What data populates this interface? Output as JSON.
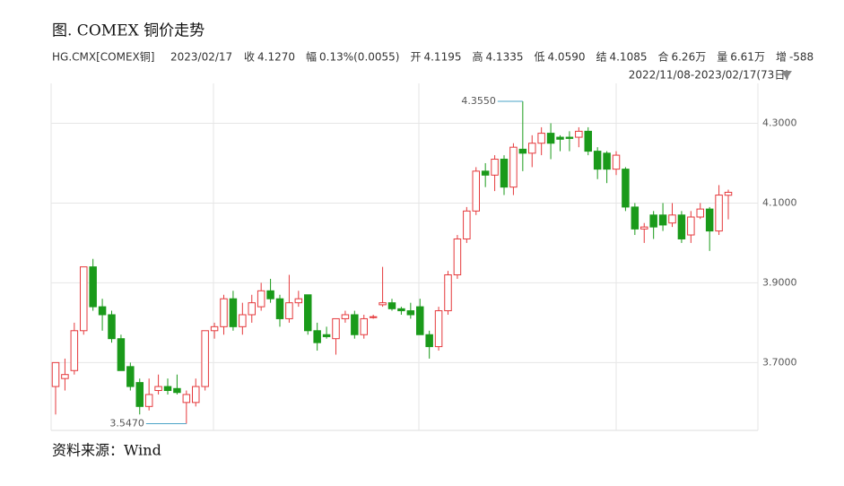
{
  "chart_data": {
    "type": "candlestick",
    "title": "图. COMEX 铜价走势",
    "symbol": "HG.CMX[COMEX铜]",
    "date": "2023/02/17",
    "info": [
      {
        "label": "收",
        "value": "4.1270",
        "color": "#1a9a1a"
      },
      {
        "label": "幅",
        "value": "0.13%(0.0055)",
        "color": "#e5393c"
      },
      {
        "label": "开",
        "value": "4.1195",
        "color": "#1a9a1a"
      },
      {
        "label": "高",
        "value": "4.1335",
        "color": "#1a9a1a"
      },
      {
        "label": "低",
        "value": "4.0590",
        "color": "#1a9a1a"
      },
      {
        "label": "结",
        "value": "4.1085",
        "color": "#e5393c"
      },
      {
        "label": "合",
        "value": "6.26万",
        "color": "#333333"
      },
      {
        "label": "量",
        "value": "6.61万",
        "color": "#333333"
      },
      {
        "label": "增",
        "value": "-588",
        "color": "#1a9a1a"
      }
    ],
    "range": "2022/11/08-2023/02/17(73日)",
    "source": "资料来源：Wind",
    "up_color": "#e5393c",
    "down_color": "#1a9a1a",
    "ylim": [
      3.53,
      4.4
    ],
    "yticks": [
      {
        "value": 3.7,
        "label": "3.7000"
      },
      {
        "value": 3.9,
        "label": "3.9000"
      },
      {
        "value": 4.1,
        "label": "4.1000"
      },
      {
        "value": 4.3,
        "label": "4.3000"
      }
    ],
    "grid": true,
    "extremes": [
      {
        "value": 4.355,
        "label": "4.3550",
        "index": 50,
        "color": "#e5393c"
      },
      {
        "value": 3.547,
        "label": "3.5470",
        "index": 14,
        "color": "#1a9a1a"
      }
    ],
    "open": [
      3.64,
      3.66,
      3.68,
      3.78,
      3.94,
      3.84,
      3.82,
      3.76,
      3.69,
      3.65,
      3.59,
      3.63,
      3.64,
      3.635,
      3.6,
      3.6,
      3.64,
      3.78,
      3.79,
      3.86,
      3.79,
      3.82,
      3.84,
      3.88,
      3.86,
      3.81,
      3.85,
      3.87,
      3.78,
      3.77,
      3.76,
      3.81,
      3.82,
      3.77,
      3.815,
      3.845,
      3.85,
      3.835,
      3.83,
      3.84,
      3.77,
      3.74,
      3.83,
      3.92,
      4.01,
      4.08,
      4.18,
      4.17,
      4.21,
      4.14,
      4.235,
      4.225,
      4.25,
      4.275,
      4.265,
      4.265,
      4.265,
      4.28,
      4.23,
      4.225,
      4.185,
      4.185,
      4.09,
      4.035,
      4.07,
      4.07,
      4.05,
      4.07,
      4.02,
      4.065,
      4.085,
      4.03,
      4.1195
    ],
    "high": [
      3.7,
      3.71,
      3.8,
      3.94,
      3.96,
      3.86,
      3.83,
      3.77,
      3.7,
      3.66,
      3.66,
      3.67,
      3.66,
      3.67,
      3.63,
      3.66,
      3.78,
      3.8,
      3.87,
      3.88,
      3.85,
      3.87,
      3.9,
      3.91,
      3.87,
      3.92,
      3.88,
      3.87,
      3.8,
      3.79,
      3.81,
      3.83,
      3.83,
      3.82,
      3.82,
      3.94,
      3.86,
      3.84,
      3.85,
      3.86,
      3.78,
      3.84,
      3.93,
      4.02,
      4.09,
      4.19,
      4.2,
      4.22,
      4.22,
      4.25,
      4.355,
      4.27,
      4.29,
      4.3,
      4.27,
      4.28,
      4.29,
      4.29,
      4.24,
      4.23,
      4.23,
      4.19,
      4.1,
      4.05,
      4.08,
      4.1,
      4.1,
      4.08,
      4.08,
      4.1,
      4.09,
      4.145,
      4.1335
    ],
    "low": [
      3.57,
      3.63,
      3.67,
      3.77,
      3.83,
      3.78,
      3.75,
      3.68,
      3.63,
      3.57,
      3.58,
      3.62,
      3.62,
      3.62,
      3.547,
      3.59,
      3.63,
      3.76,
      3.77,
      3.78,
      3.77,
      3.8,
      3.83,
      3.85,
      3.79,
      3.8,
      3.84,
      3.77,
      3.73,
      3.76,
      3.72,
      3.8,
      3.76,
      3.76,
      3.81,
      3.84,
      3.83,
      3.82,
      3.81,
      3.77,
      3.71,
      3.73,
      3.82,
      3.91,
      4.0,
      4.07,
      4.14,
      4.13,
      4.12,
      4.12,
      4.18,
      4.19,
      4.22,
      4.21,
      4.23,
      4.23,
      4.24,
      4.22,
      4.16,
      4.15,
      4.17,
      4.08,
      4.02,
      4.0,
      4.01,
      4.03,
      4.04,
      4.0,
      4.0,
      4.06,
      3.98,
      4.02,
      4.059
    ],
    "close": [
      3.7,
      3.67,
      3.78,
      3.94,
      3.84,
      3.82,
      3.76,
      3.68,
      3.64,
      3.59,
      3.62,
      3.64,
      3.63,
      3.625,
      3.62,
      3.64,
      3.78,
      3.79,
      3.86,
      3.79,
      3.82,
      3.85,
      3.88,
      3.86,
      3.81,
      3.85,
      3.86,
      3.78,
      3.75,
      3.765,
      3.81,
      3.82,
      3.77,
      3.81,
      3.815,
      3.85,
      3.835,
      3.83,
      3.82,
      3.77,
      3.74,
      3.83,
      3.92,
      4.01,
      4.08,
      4.18,
      4.17,
      4.21,
      4.14,
      4.24,
      4.225,
      4.25,
      4.275,
      4.25,
      4.26,
      4.262,
      4.28,
      4.23,
      4.185,
      4.185,
      4.22,
      4.09,
      4.035,
      4.04,
      4.04,
      4.045,
      4.07,
      4.01,
      4.065,
      4.085,
      4.03,
      4.12,
      4.127
    ]
  }
}
